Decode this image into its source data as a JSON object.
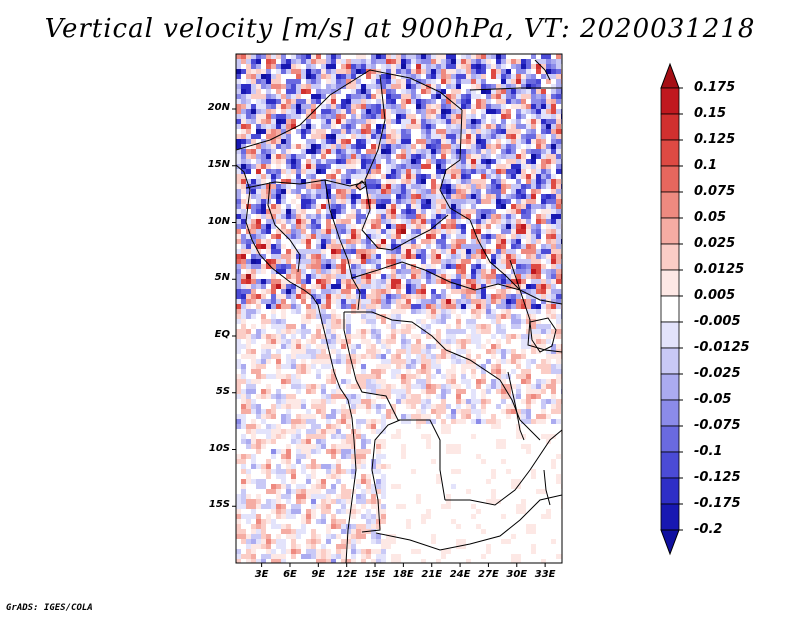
{
  "title": "Vertical velocity [m/s] at 900hPa, VT: 2020031218",
  "credit": "GrADS: IGES/COLA",
  "map": {
    "variable": "Vertical velocity",
    "units": "m/s",
    "level": "900hPa",
    "valid_time": "2020031218",
    "lat_labels": [
      "20N",
      "15N",
      "10N",
      "5N",
      "EQ",
      "5S",
      "10S",
      "15S"
    ],
    "lon_labels": [
      "3E",
      "6E",
      "9E",
      "12E",
      "15E",
      "18E",
      "21E",
      "24E",
      "27E",
      "30E",
      "33E"
    ]
  },
  "colorbar": {
    "labels": [
      "0.175",
      "0.15",
      "0.125",
      "0.1",
      "0.075",
      "0.05",
      "0.025",
      "0.0125",
      "0.005",
      "-0.005",
      "-0.0125",
      "-0.025",
      "-0.05",
      "-0.075",
      "-0.1",
      "-0.125",
      "-0.175",
      "-0.2"
    ],
    "colors": [
      "#a50f15",
      "#c0181f",
      "#d1302f",
      "#de4a43",
      "#e6675e",
      "#ee8a80",
      "#f5aca3",
      "#fbcdc6",
      "#fde8e5",
      "#ffffff",
      "#e3e3fb",
      "#c9c9f6",
      "#ababf0",
      "#8b8be9",
      "#6a6ae0",
      "#4b4bd6",
      "#2e2ec6",
      "#1818b2",
      "#1010a0"
    ]
  }
}
